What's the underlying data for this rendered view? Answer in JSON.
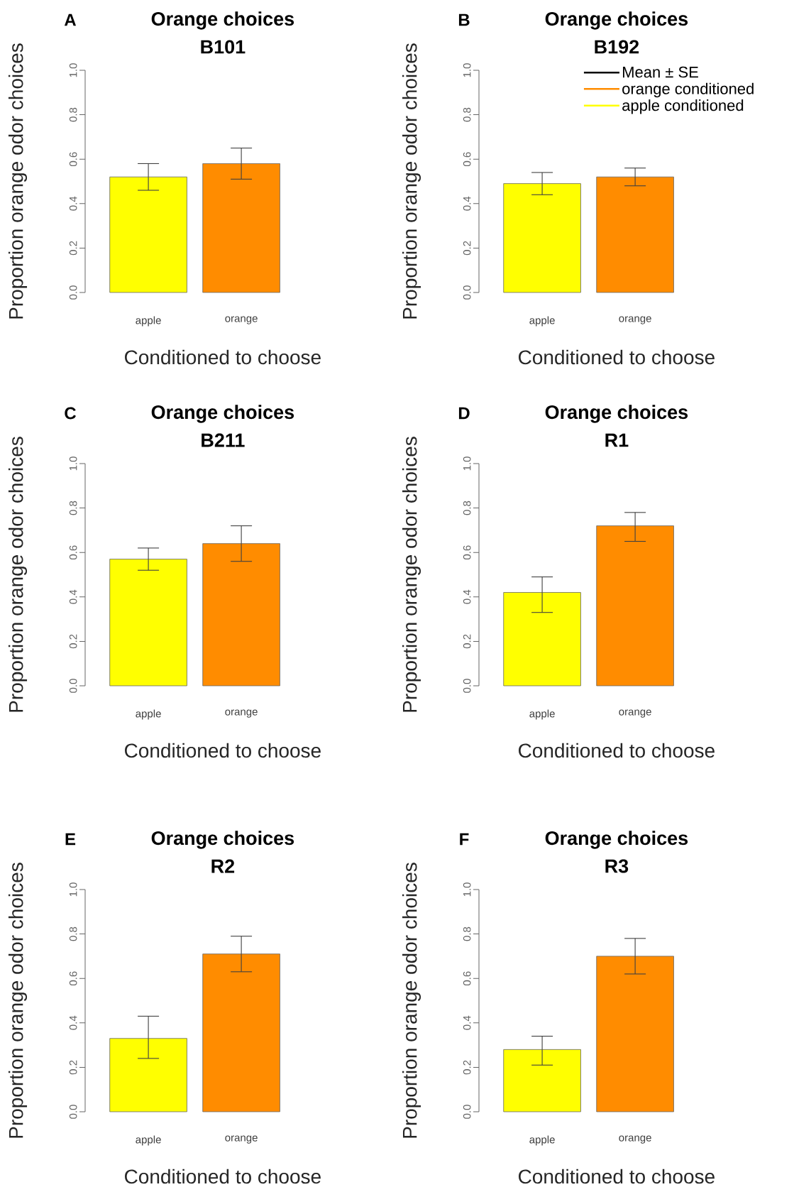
{
  "chart_data": [
    {
      "type": "bar",
      "title": "Orange choices",
      "subtitle": "B101",
      "xlabel": "Conditioned to choose",
      "ylabel": "Proportion orange odor choices",
      "annotations": [
        "A"
      ],
      "categories": [
        "apple",
        "orange"
      ],
      "values": [
        0.52,
        0.58
      ],
      "colors": [
        "#ffff00",
        "#ff8c00"
      ],
      "errors": [
        [
          0.46,
          0.58
        ],
        [
          0.51,
          0.65
        ]
      ],
      "ylim": [
        0,
        1
      ],
      "yticks": [
        {
          "value": 0,
          "label": "0.0"
        },
        {
          "value": 0.2,
          "label": "0.2"
        },
        {
          "value": 0.4,
          "label": "0.4"
        },
        {
          "value": 0.6,
          "label": "0.6"
        },
        {
          "value": 0.8,
          "label": "0.8"
        },
        {
          "value": 1,
          "label": "1.0"
        }
      ]
    },
    {
      "type": "bar",
      "title": "Orange choices",
      "subtitle": "B192",
      "xlabel": "Conditioned to choose",
      "ylabel": "Proportion orange odor choices",
      "annotations": [
        "B",
        "Mean ± SE"
      ],
      "categories": [
        "apple",
        "orange"
      ],
      "legend": "top right",
      "series": [
        {
          "name": "orange conditioned",
          "color": "#ff8c00",
          "values": [
            null,
            0.52
          ],
          "errors": [
            null,
            [
              0.48,
              0.56
            ]
          ]
        },
        {
          "name": "apple conditioned",
          "color": "#ffff00",
          "values": [
            0.49,
            null
          ],
          "errors": [
            [
              0.44,
              0.54
            ],
            null
          ]
        }
      ],
      "ylim": [
        0,
        1
      ],
      "yticks": [
        {
          "value": 0,
          "label": "0.0"
        },
        {
          "value": 0.2,
          "label": "0.2"
        },
        {
          "value": 0.4,
          "label": "0.4"
        },
        {
          "value": 0.6,
          "label": "0.6"
        },
        {
          "value": 0.8,
          "label": "0.8"
        },
        {
          "value": 1,
          "label": "1.0"
        }
      ]
    },
    {
      "type": "bar",
      "title": "Orange choices",
      "subtitle": "B211",
      "xlabel": "Conditioned to choose",
      "ylabel": "Proportion orange odor choices",
      "annotations": [
        "C"
      ],
      "categories": [
        "apple",
        "orange"
      ],
      "values": [
        0.57,
        0.64
      ],
      "colors": [
        "#ffff00",
        "#ff8c00"
      ],
      "errors": [
        [
          0.52,
          0.62
        ],
        [
          0.56,
          0.72
        ]
      ],
      "ylim": [
        0,
        1
      ],
      "yticks": [
        {
          "value": 0,
          "label": "0.0"
        },
        {
          "value": 0.2,
          "label": "0.2"
        },
        {
          "value": 0.4,
          "label": "0.4"
        },
        {
          "value": 0.6,
          "label": "0.6"
        },
        {
          "value": 0.8,
          "label": "0.8"
        },
        {
          "value": 1,
          "label": "1.0"
        }
      ]
    },
    {
      "type": "bar",
      "title": "Orange choices",
      "subtitle": "R1",
      "xlabel": "Conditioned to choose",
      "ylabel": "Proportion orange odor choices",
      "annotations": [
        "D"
      ],
      "categories": [
        "apple",
        "orange"
      ],
      "values": [
        0.42,
        0.72
      ],
      "colors": [
        "#ffff00",
        "#ff8c00"
      ],
      "errors": [
        [
          0.33,
          0.49
        ],
        [
          0.65,
          0.78
        ]
      ],
      "ylim": [
        0,
        1
      ],
      "yticks": [
        {
          "value": 0,
          "label": "0.0"
        },
        {
          "value": 0.2,
          "label": "0.2"
        },
        {
          "value": 0.4,
          "label": "0.4"
        },
        {
          "value": 0.6,
          "label": "0.6"
        },
        {
          "value": 0.8,
          "label": "0.8"
        },
        {
          "value": 1,
          "label": "1.0"
        }
      ]
    },
    {
      "type": "bar",
      "title": "Orange choices",
      "subtitle": "R2",
      "xlabel": "Conditioned to choose",
      "ylabel": "Proportion orange odor choices",
      "annotations": [
        "E"
      ],
      "categories": [
        "apple",
        "orange"
      ],
      "values": [
        0.33,
        0.71
      ],
      "colors": [
        "#ffff00",
        "#ff8c00"
      ],
      "errors": [
        [
          0.24,
          0.43
        ],
        [
          0.63,
          0.79
        ]
      ],
      "ylim": [
        0,
        1
      ],
      "yticks": [
        {
          "value": 0,
          "label": "0.0"
        },
        {
          "value": 0.2,
          "label": "0.2"
        },
        {
          "value": 0.4,
          "label": "0.4"
        },
        {
          "value": 0.6,
          "label": "0.6"
        },
        {
          "value": 0.8,
          "label": "0.8"
        },
        {
          "value": 1,
          "label": "1.0"
        }
      ]
    },
    {
      "type": "bar",
      "title": "Orange choices",
      "subtitle": "R3",
      "xlabel": "Conditioned to choose",
      "ylabel": "Proportion orange odor choices",
      "annotations": [
        "F"
      ],
      "categories": [
        "apple",
        "orange"
      ],
      "values": [
        0.28,
        0.7
      ],
      "colors": [
        "#ffff00",
        "#ff8c00"
      ],
      "errors": [
        [
          0.21,
          0.34
        ],
        [
          0.62,
          0.78
        ]
      ],
      "ylim": [
        0,
        1
      ],
      "yticks": [
        {
          "value": 0,
          "label": "0.0"
        },
        {
          "value": 0.2,
          "label": "0.2"
        },
        {
          "value": 0.4,
          "label": "0.4"
        },
        {
          "value": 0.6,
          "label": "0.6"
        },
        {
          "value": 0.8,
          "label": "0.8"
        },
        {
          "value": 1,
          "label": "1.0"
        }
      ]
    }
  ]
}
